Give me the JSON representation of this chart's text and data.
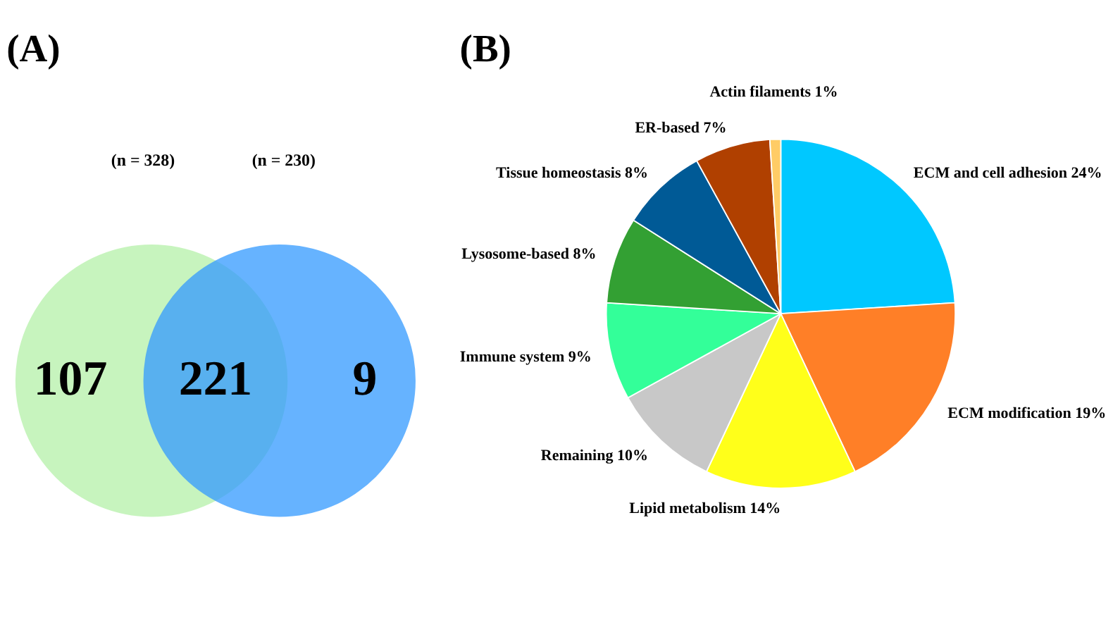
{
  "chart_data": [
    {
      "type": "other",
      "title": "(A)",
      "series": [
        {
          "color": "#b4f0a8"
        },
        {
          "color": "#3399ff"
        }
      ],
      "annotations": [
        "(n = 328)",
        "(n = 230)",
        "107",
        "221",
        "9"
      ]
    },
    {
      "type": "pie",
      "title": "(B)",
      "categories": [
        "ECM and cell adhesion",
        "ECM modification",
        "Lipid metabolism",
        "Remaining",
        "Immune system",
        "Lysosome-based",
        "Tissue homeostasis",
        "ER-based",
        "Actin filaments"
      ],
      "values": [
        24,
        19,
        14,
        10,
        9,
        8,
        8,
        7,
        1
      ],
      "value_labels": [
        "24%",
        "19%",
        "14%",
        "10%",
        "9%",
        "8%",
        "8%",
        "7%",
        "1%"
      ],
      "colors": [
        "#00c8ff",
        "#ff7f27",
        "#ffff1a",
        "#c8c8c8",
        "#33ff99",
        "#33a033",
        "#005a96",
        "#b04000",
        "#ffcc66"
      ]
    }
  ]
}
